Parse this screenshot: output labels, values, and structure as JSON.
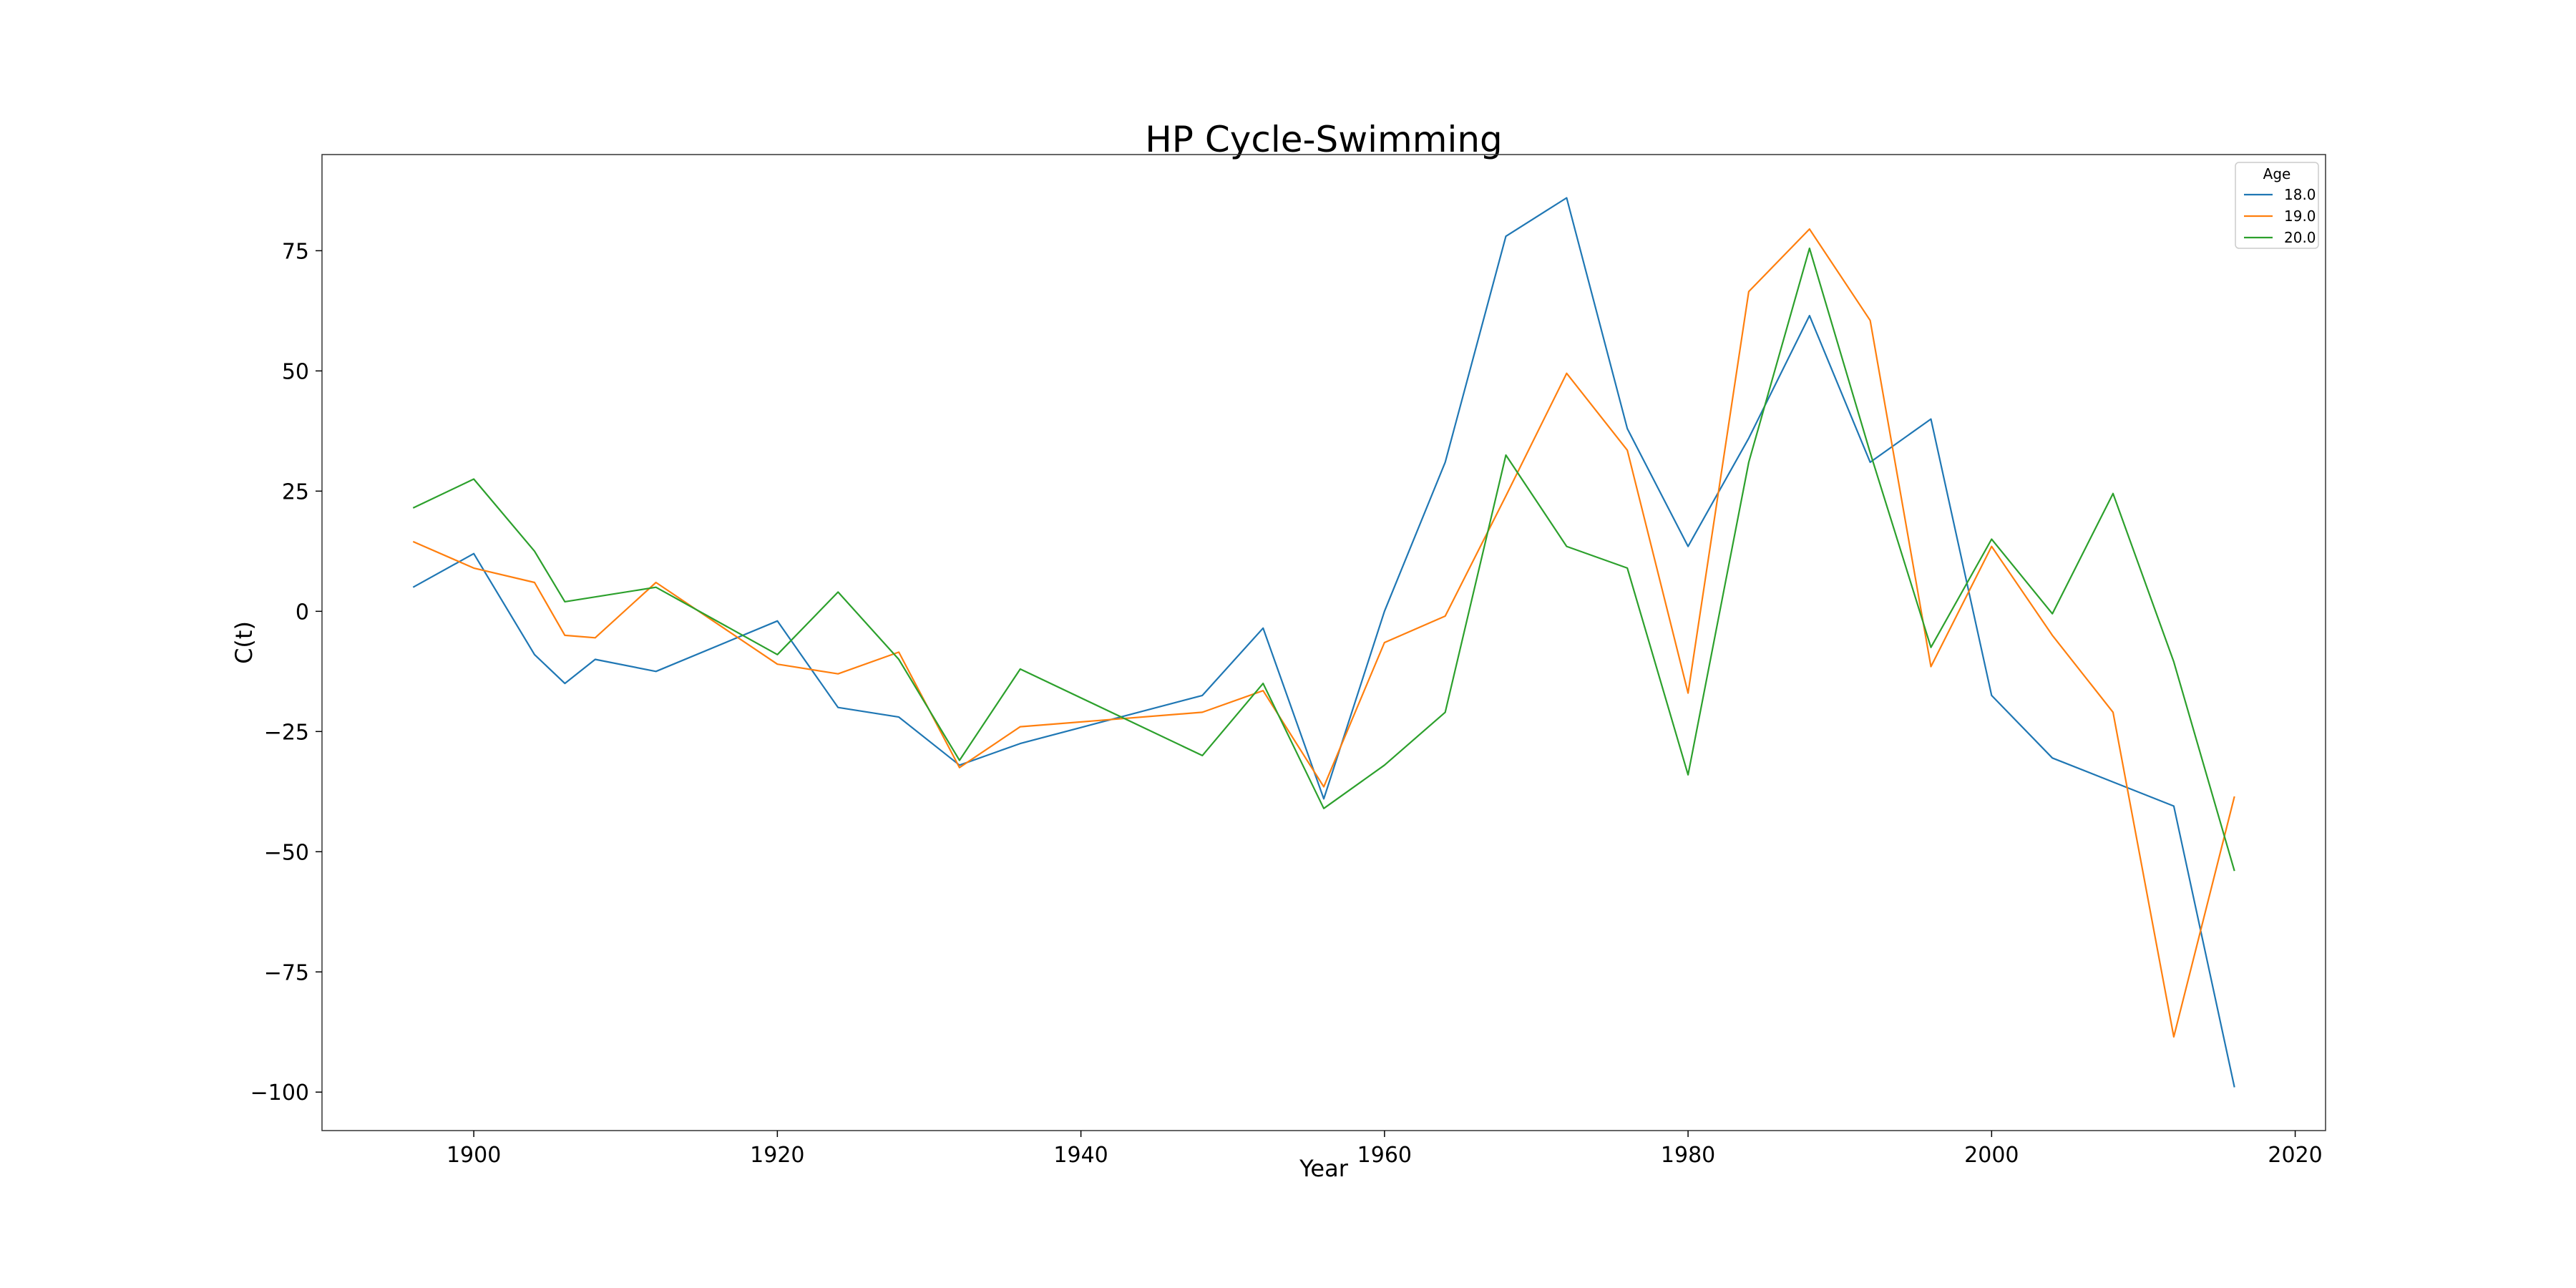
{
  "chart_data": {
    "type": "line",
    "title": "HP Cycle-Swimming",
    "xlabel": "Year",
    "ylabel": "C(t)",
    "xlim": [
      1890,
      2022
    ],
    "ylim": [
      -108,
      95
    ],
    "xticks": [
      1900,
      1920,
      1940,
      1960,
      1980,
      2000,
      2020
    ],
    "yticks": [
      75,
      50,
      25,
      0,
      -25,
      -50,
      -75,
      -100
    ],
    "ytick_labels": [
      "75",
      "50",
      "25",
      "0",
      "−25",
      "−50",
      "−75",
      "−100"
    ],
    "grid": false,
    "legend": {
      "title": "Age",
      "placement": "top-right"
    },
    "series": [
      {
        "name": "18.0",
        "color": "#1f77b4",
        "points": [
          [
            1896,
            5
          ],
          [
            1900,
            12
          ],
          [
            1904,
            -9
          ],
          [
            1906,
            -15
          ],
          [
            1908,
            -10
          ],
          [
            1912,
            -12.5
          ],
          [
            1920,
            -2
          ],
          [
            1924,
            -20
          ],
          [
            1928,
            -22
          ],
          [
            1932,
            -32
          ],
          [
            1936,
            -27.5
          ],
          [
            1948,
            -17.5
          ],
          [
            1952,
            -3.5
          ],
          [
            1956,
            -39
          ],
          [
            1960,
            0
          ],
          [
            1964,
            31
          ],
          [
            1968,
            78
          ],
          [
            1972,
            86
          ],
          [
            1976,
            38
          ],
          [
            1980,
            13.5
          ],
          [
            1984,
            36
          ],
          [
            1988,
            61.5
          ],
          [
            1992,
            31
          ],
          [
            1996,
            40
          ],
          [
            2000,
            -17.5
          ],
          [
            2004,
            -30.5
          ],
          [
            2008,
            -35.5
          ],
          [
            2012,
            -40.5
          ],
          [
            2016,
            -99
          ]
        ]
      },
      {
        "name": "19.0",
        "color": "#ff7f0e",
        "points": [
          [
            1896,
            14.5
          ],
          [
            1900,
            9
          ],
          [
            1904,
            6
          ],
          [
            1906,
            -5
          ],
          [
            1908,
            -5.5
          ],
          [
            1912,
            6
          ],
          [
            1920,
            -11
          ],
          [
            1924,
            -13
          ],
          [
            1928,
            -8.5
          ],
          [
            1932,
            -32.5
          ],
          [
            1936,
            -24
          ],
          [
            1948,
            -21
          ],
          [
            1952,
            -16.5
          ],
          [
            1956,
            -36.5
          ],
          [
            1960,
            -6.5
          ],
          [
            1964,
            -1
          ],
          [
            1968,
            24
          ],
          [
            1972,
            49.5
          ],
          [
            1976,
            33.5
          ],
          [
            1980,
            -17
          ],
          [
            1984,
            66.5
          ],
          [
            1988,
            79.5
          ],
          [
            1992,
            60.5
          ],
          [
            1996,
            -11.5
          ],
          [
            2000,
            13.5
          ],
          [
            2004,
            -5
          ],
          [
            2008,
            -21
          ],
          [
            2012,
            -88.5
          ],
          [
            2016,
            -38.5
          ]
        ]
      },
      {
        "name": "20.0",
        "color": "#2ca02c",
        "points": [
          [
            1896,
            21.5
          ],
          [
            1900,
            27.5
          ],
          [
            1904,
            12.5
          ],
          [
            1906,
            2
          ],
          [
            1912,
            5
          ],
          [
            1920,
            -9
          ],
          [
            1924,
            4
          ],
          [
            1928,
            -10
          ],
          [
            1932,
            -31
          ],
          [
            1936,
            -12
          ],
          [
            1948,
            -30
          ],
          [
            1952,
            -15
          ],
          [
            1956,
            -41
          ],
          [
            1960,
            -32
          ],
          [
            1964,
            -21
          ],
          [
            1968,
            32.5
          ],
          [
            1972,
            13.5
          ],
          [
            1976,
            9
          ],
          [
            1980,
            -34
          ],
          [
            1984,
            31
          ],
          [
            1988,
            75.5
          ],
          [
            1992,
            33
          ],
          [
            1996,
            -7.5
          ],
          [
            2000,
            15
          ],
          [
            2004,
            -0.5
          ],
          [
            2008,
            24.5
          ],
          [
            2012,
            -10.5
          ],
          [
            2016,
            -54
          ]
        ]
      }
    ]
  }
}
